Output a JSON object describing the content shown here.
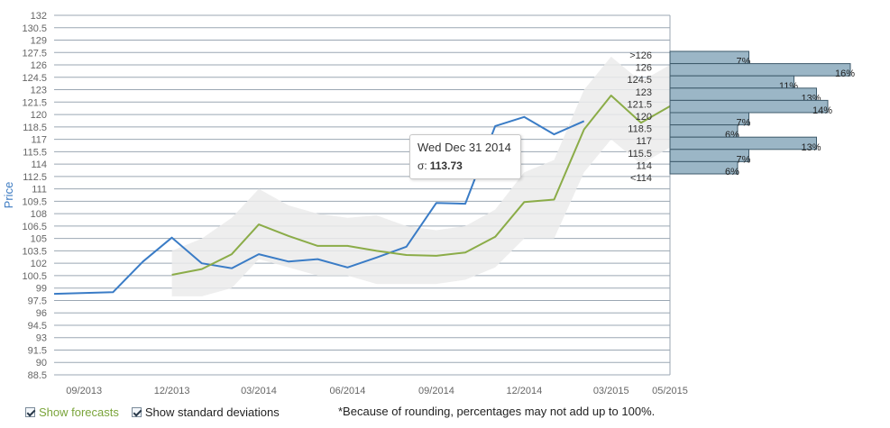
{
  "chart_data": {
    "type": "line",
    "ylabel": "Price",
    "y_ticks": [
      "132",
      "130.5",
      "129",
      "127.5",
      "126",
      "124.5",
      "123",
      "121.5",
      "120",
      "118.5",
      "117",
      "115.5",
      "114",
      "112.5",
      "111",
      "109.5",
      "108",
      "106.5",
      "105",
      "103.5",
      "102",
      "100.5",
      "99",
      "97.5",
      "96",
      "94.5",
      "93",
      "91.5",
      "90",
      "88.5"
    ],
    "ylim": [
      88.5,
      132
    ],
    "x_ticks": [
      "09/2013",
      "12/2013",
      "03/2014",
      "06/2014",
      "09/2014",
      "12/2014",
      "03/2015",
      "05/2015"
    ],
    "xlim": [
      "2013-08-01",
      "2015-05-01"
    ],
    "grid": "horizontal",
    "series": [
      {
        "color": "#3a7cc6",
        "points": [
          [
            "2013-08-01",
            98.3
          ],
          [
            "2013-10-01",
            98.5
          ],
          [
            "2013-11-01",
            102.2
          ],
          [
            "2013-12-01",
            105.1
          ],
          [
            "2014-01-01",
            102.0
          ],
          [
            "2014-02-01",
            101.4
          ],
          [
            "2014-03-01",
            103.1
          ],
          [
            "2014-04-01",
            102.2
          ],
          [
            "2014-05-01",
            102.5
          ],
          [
            "2014-06-01",
            101.5
          ],
          [
            "2014-07-01",
            102.7
          ],
          [
            "2014-08-01",
            104.0
          ],
          [
            "2014-09-01",
            109.3
          ],
          [
            "2014-10-01",
            109.2
          ],
          [
            "2014-11-01",
            118.6
          ],
          [
            "2014-12-01",
            119.7
          ],
          [
            "2015-01-01",
            117.6
          ],
          [
            "2015-02-01",
            119.2
          ]
        ]
      },
      {
        "color": "#8bac48",
        "points": [
          [
            "2013-12-01",
            100.6
          ],
          [
            "2014-01-01",
            101.3
          ],
          [
            "2014-02-01",
            103.1
          ],
          [
            "2014-03-01",
            106.7
          ],
          [
            "2014-04-01",
            105.3
          ],
          [
            "2014-05-01",
            104.1
          ],
          [
            "2014-06-01",
            104.1
          ],
          [
            "2014-07-01",
            103.5
          ],
          [
            "2014-08-01",
            103.0
          ],
          [
            "2014-09-01",
            102.9
          ],
          [
            "2014-10-01",
            103.3
          ],
          [
            "2014-11-01",
            105.2
          ],
          [
            "2014-12-01",
            109.4
          ],
          [
            "2015-01-01",
            109.7
          ],
          [
            "2015-02-01",
            118.2
          ],
          [
            "2015-03-01",
            122.3
          ],
          [
            "2015-04-01",
            119.0
          ],
          [
            "2015-05-01",
            121.0
          ]
        ]
      }
    ],
    "std_band": {
      "color": "#ebebeb",
      "upper": [
        [
          "2013-12-01",
          103.5
        ],
        [
          "2014-01-01",
          105.0
        ],
        [
          "2014-02-01",
          107.5
        ],
        [
          "2014-03-01",
          111.0
        ],
        [
          "2014-04-01",
          109.0
        ],
        [
          "2014-05-01",
          108.0
        ],
        [
          "2014-06-01",
          107.5
        ],
        [
          "2014-07-01",
          107.8
        ],
        [
          "2014-08-01",
          106.5
        ],
        [
          "2014-09-01",
          106.0
        ],
        [
          "2014-10-01",
          106.5
        ],
        [
          "2014-11-01",
          108.5
        ],
        [
          "2014-12-01",
          113.0
        ],
        [
          "2015-01-01",
          114.5
        ],
        [
          "2015-02-01",
          123.0
        ],
        [
          "2015-03-01",
          127.0
        ],
        [
          "2015-04-01",
          124.0
        ],
        [
          "2015-05-01",
          126.0
        ]
      ],
      "lower": [
        [
          "2015-05-01",
          116.0
        ],
        [
          "2015-04-01",
          114.0
        ],
        [
          "2015-03-01",
          117.0
        ],
        [
          "2015-02-01",
          113.0
        ],
        [
          "2015-01-01",
          105.0
        ],
        [
          "2014-12-01",
          105.0
        ],
        [
          "2014-11-01",
          101.5
        ],
        [
          "2014-10-01",
          100.0
        ],
        [
          "2014-09-01",
          99.5
        ],
        [
          "2014-08-01",
          99.5
        ],
        [
          "2014-07-01",
          99.5
        ],
        [
          "2014-06-01",
          100.5
        ],
        [
          "2014-05-01",
          100.5
        ],
        [
          "2014-04-01",
          101.5
        ],
        [
          "2014-03-01",
          102.5
        ],
        [
          "2014-02-01",
          99.0
        ],
        [
          "2014-01-01",
          98.0
        ],
        [
          "2013-12-01",
          98.0
        ]
      ]
    },
    "distribution": {
      "bar_color": "#9bb6c6",
      "border_color": "#3e5a6b",
      "bins": [
        {
          "label": ">126",
          "value": 7
        },
        {
          "label": "126",
          "value": 16
        },
        {
          "label": "124.5",
          "value": 11
        },
        {
          "label": "123",
          "value": 13
        },
        {
          "label": "121.5",
          "value": 14
        },
        {
          "label": "120",
          "value": 7
        },
        {
          "label": "118.5",
          "value": 6
        },
        {
          "label": "117",
          "value": 13
        },
        {
          "label": "115.5",
          "value": 7
        },
        {
          "label": "114",
          "value": 6
        },
        {
          "label": "<114",
          "value": null
        }
      ],
      "pct_suffix": "%"
    }
  },
  "tooltip": {
    "date": "Wed Dec 31 2014",
    "sigma_label": "σ:",
    "sigma_value": "113.73"
  },
  "controls": {
    "show_forecasts": {
      "label": "Show forecasts",
      "checked": true
    },
    "show_std": {
      "label": "Show standard deviations",
      "checked": true
    }
  },
  "footnote": "*Because of rounding, percentages may not add up to 100%."
}
